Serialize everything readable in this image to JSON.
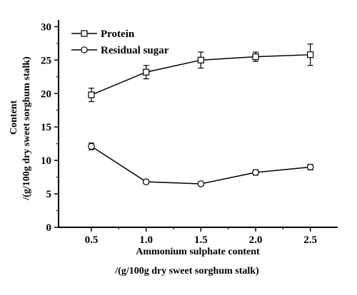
{
  "chart_data": {
    "type": "line",
    "x": [
      0.5,
      1.0,
      1.5,
      2.0,
      2.5
    ],
    "xticks": [
      "0.5",
      "1.0",
      "1.5",
      "2.0",
      "2.5"
    ],
    "yticks": [
      "0",
      "5",
      "10",
      "15",
      "20",
      "25",
      "30"
    ],
    "xlim": [
      0.2,
      2.75
    ],
    "ylim": [
      0,
      31
    ],
    "xlabel_line1": "Ammonium sulphate content",
    "xlabel_line2": "/(g/100g dry sweet sorghum stalk)",
    "ylabel_line1": "Content",
    "ylabel_line2": "/(g/100g dry sweet sorghum stalk)",
    "legend_position": "top-left",
    "grid": false,
    "series": [
      {
        "name": "Protein",
        "marker": "square",
        "color": "#000000",
        "values": [
          19.8,
          23.2,
          25.0,
          25.5,
          25.8
        ],
        "errors": [
          1.0,
          1.0,
          1.2,
          0.7,
          1.6
        ]
      },
      {
        "name": "Residual sugar",
        "marker": "circle",
        "color": "#000000",
        "values": [
          12.1,
          6.8,
          6.5,
          8.2,
          9.0
        ],
        "errors": [
          0.5,
          0.3,
          0.3,
          0.4,
          0.4
        ]
      }
    ]
  }
}
